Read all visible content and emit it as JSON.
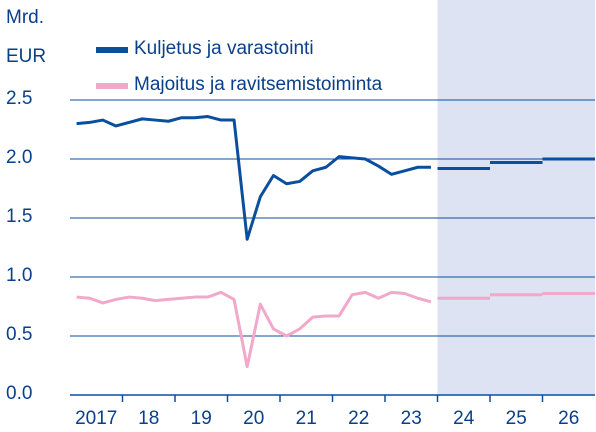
{
  "chart_data": {
    "type": "line",
    "ylabel": [
      "Mrd.",
      "EUR"
    ],
    "x": [
      2017.125,
      2017.375,
      2017.625,
      2017.875,
      2018.125,
      2018.375,
      2018.625,
      2018.875,
      2019.125,
      2019.375,
      2019.625,
      2019.875,
      2020.125,
      2020.375,
      2020.625,
      2020.875,
      2021.125,
      2021.375,
      2021.625,
      2021.875,
      2022.125,
      2022.375,
      2022.625,
      2022.875,
      2023.125,
      2023.375,
      2023.625,
      2023.875
    ],
    "forecast_x": [
      2024,
      2025,
      2026
    ],
    "series": [
      {
        "name": "Kuljetus ja varastointi",
        "color": "#0a4f9e",
        "values": [
          2.3,
          2.31,
          2.33,
          2.28,
          2.31,
          2.34,
          2.33,
          2.32,
          2.35,
          2.35,
          2.36,
          2.33,
          2.33,
          1.32,
          1.68,
          1.86,
          1.79,
          1.81,
          1.9,
          1.93,
          2.02,
          2.01,
          2.0,
          1.94,
          1.87,
          1.9,
          1.93,
          1.93
        ],
        "forecast_values": [
          1.92,
          1.97,
          2.0
        ]
      },
      {
        "name": "Majoitus ja ravitsemistoiminta",
        "color": "#f2a8c9",
        "values": [
          0.83,
          0.82,
          0.78,
          0.81,
          0.83,
          0.82,
          0.8,
          0.81,
          0.82,
          0.83,
          0.83,
          0.87,
          0.81,
          0.24,
          0.77,
          0.56,
          0.5,
          0.56,
          0.66,
          0.67,
          0.67,
          0.85,
          0.87,
          0.82,
          0.87,
          0.86,
          0.82,
          0.79
        ],
        "forecast_values": [
          0.82,
          0.85,
          0.86
        ]
      }
    ],
    "shade_from": 2024,
    "shade_color": "#dde3f3",
    "xlim": [
      2017,
      2027
    ],
    "xticks": [
      {
        "value": 2017,
        "label": "2017"
      },
      {
        "value": 2018,
        "label": "18"
      },
      {
        "value": 2019,
        "label": "19"
      },
      {
        "value": 2020,
        "label": "20"
      },
      {
        "value": 2021,
        "label": "21"
      },
      {
        "value": 2022,
        "label": "22"
      },
      {
        "value": 2023,
        "label": "23"
      },
      {
        "value": 2024,
        "label": "24"
      },
      {
        "value": 2025,
        "label": "25"
      },
      {
        "value": 2026,
        "label": "26"
      }
    ],
    "ylim": [
      0,
      2.5
    ],
    "yticks": [
      {
        "value": 0,
        "label": "0.0"
      },
      0.5,
      {
        "value": 1,
        "label": "1.0"
      },
      1.5,
      {
        "value": 2,
        "label": "2.0"
      },
      2.5
    ],
    "grid": true
  }
}
